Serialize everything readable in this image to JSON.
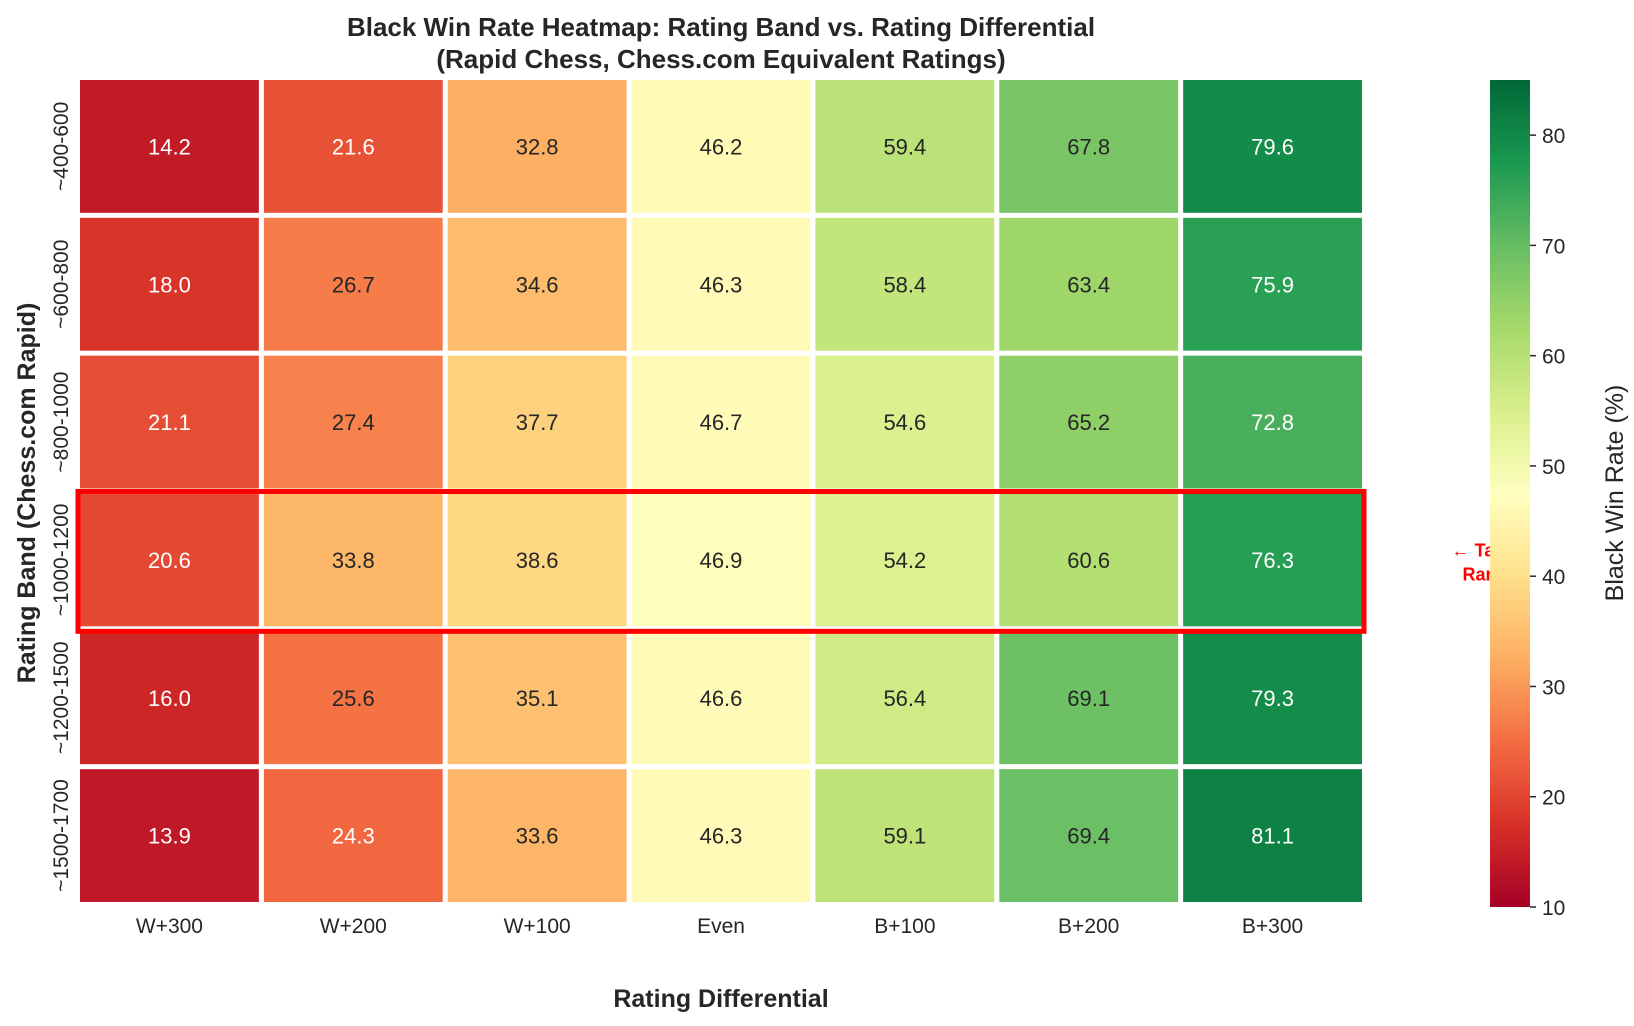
{
  "chart_data": {
    "type": "heatmap",
    "title": "Black Win Rate Heatmap: Rating Band vs. Rating Differential",
    "subtitle": "(Rapid Chess, Chess.com Equivalent Ratings)",
    "xlabel": "Rating Differential",
    "ylabel": "Rating Band (Chess.com Rapid)",
    "x_categories": [
      "W+300",
      "W+200",
      "W+100",
      "Even",
      "B+100",
      "B+200",
      "B+300"
    ],
    "y_categories": [
      "~400-600",
      "~600-800",
      "~800-1000",
      "~1000-1200",
      "~1200-1500",
      "~1500-1700"
    ],
    "values": [
      [
        14.2,
        21.6,
        32.8,
        46.2,
        59.4,
        67.8,
        79.6
      ],
      [
        18.0,
        26.7,
        34.6,
        46.3,
        58.4,
        63.4,
        75.9
      ],
      [
        21.1,
        27.4,
        37.7,
        46.7,
        54.6,
        65.2,
        72.8
      ],
      [
        20.6,
        33.8,
        38.6,
        46.9,
        54.2,
        60.6,
        76.3
      ],
      [
        16.0,
        25.6,
        35.1,
        46.6,
        56.4,
        69.1,
        79.3
      ],
      [
        13.9,
        24.3,
        33.6,
        46.3,
        59.1,
        69.4,
        81.1
      ]
    ],
    "colorbar": {
      "label": "Black Win Rate (%)",
      "min": 10,
      "max": 85,
      "ticks": [
        10,
        20,
        30,
        40,
        50,
        60,
        70,
        80
      ],
      "colormap": "RdYlGn"
    },
    "highlight": {
      "row_label": "~1000-1200",
      "color": "#ff0000",
      "annotation_lines": [
        "← Target",
        "Range"
      ]
    },
    "grid": false
  }
}
